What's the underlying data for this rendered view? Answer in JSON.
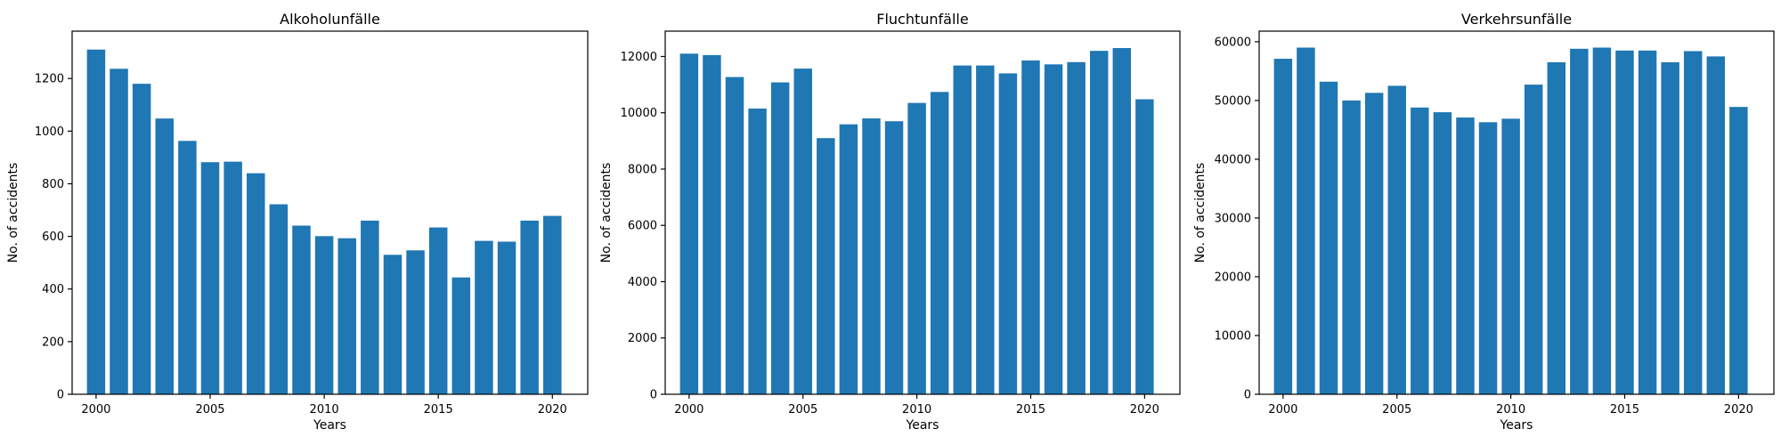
{
  "chart_data": [
    {
      "type": "bar",
      "title": "Alkoholunfälle",
      "xlabel": "Years",
      "ylabel": "No. of accidents",
      "categories": [
        2000,
        2001,
        2002,
        2003,
        2004,
        2005,
        2006,
        2007,
        2008,
        2009,
        2010,
        2011,
        2012,
        2013,
        2014,
        2015,
        2016,
        2017,
        2018,
        2019,
        2020
      ],
      "values": [
        1310,
        1237,
        1180,
        1048,
        963,
        882,
        884,
        840,
        722,
        641,
        601,
        593,
        660,
        530,
        547,
        634,
        444,
        583,
        580,
        660,
        678
      ],
      "xlim": [
        1998.95,
        2021.55
      ],
      "ylim": [
        0,
        1380
      ],
      "xticks": [
        2000,
        2005,
        2010,
        2015,
        2020
      ],
      "yticks": [
        0,
        200,
        400,
        600,
        800,
        1000,
        1200
      ],
      "bar_color": "#1f77b4",
      "grid": false
    },
    {
      "type": "bar",
      "title": "Fluchtunfälle",
      "xlabel": "Years",
      "ylabel": "No. of accidents",
      "categories": [
        2000,
        2001,
        2002,
        2003,
        2004,
        2005,
        2006,
        2007,
        2008,
        2009,
        2010,
        2011,
        2012,
        2013,
        2014,
        2015,
        2016,
        2017,
        2018,
        2019,
        2020
      ],
      "values": [
        12100,
        12050,
        11270,
        10150,
        11080,
        11570,
        9100,
        9590,
        9800,
        9700,
        10350,
        10740,
        11680,
        11680,
        11400,
        11860,
        11720,
        11800,
        12200,
        12300,
        10480
      ],
      "xlim": [
        1998.95,
        2021.55
      ],
      "ylim": [
        0,
        12900
      ],
      "xticks": [
        2000,
        2005,
        2010,
        2015,
        2020
      ],
      "yticks": [
        0,
        2000,
        4000,
        6000,
        8000,
        10000,
        12000
      ],
      "bar_color": "#1f77b4",
      "grid": false
    },
    {
      "type": "bar",
      "title": "Verkehrsunfälle",
      "xlabel": "Years",
      "ylabel": "No. of accidents",
      "categories": [
        2000,
        2001,
        2002,
        2003,
        2004,
        2005,
        2006,
        2007,
        2008,
        2009,
        2010,
        2011,
        2012,
        2013,
        2014,
        2015,
        2016,
        2017,
        2018,
        2019,
        2020
      ],
      "values": [
        57100,
        59000,
        53200,
        50000,
        51300,
        52500,
        48800,
        48000,
        47100,
        46300,
        46900,
        52700,
        56500,
        58800,
        59000,
        58500,
        58500,
        56500,
        58400,
        57500,
        48900
      ],
      "xlim": [
        1998.95,
        2021.55
      ],
      "ylim": [
        0,
        61800
      ],
      "xticks": [
        2000,
        2005,
        2010,
        2015,
        2020
      ],
      "yticks": [
        0,
        10000,
        20000,
        30000,
        40000,
        50000,
        60000
      ],
      "bar_color": "#1f77b4",
      "grid": false
    }
  ]
}
